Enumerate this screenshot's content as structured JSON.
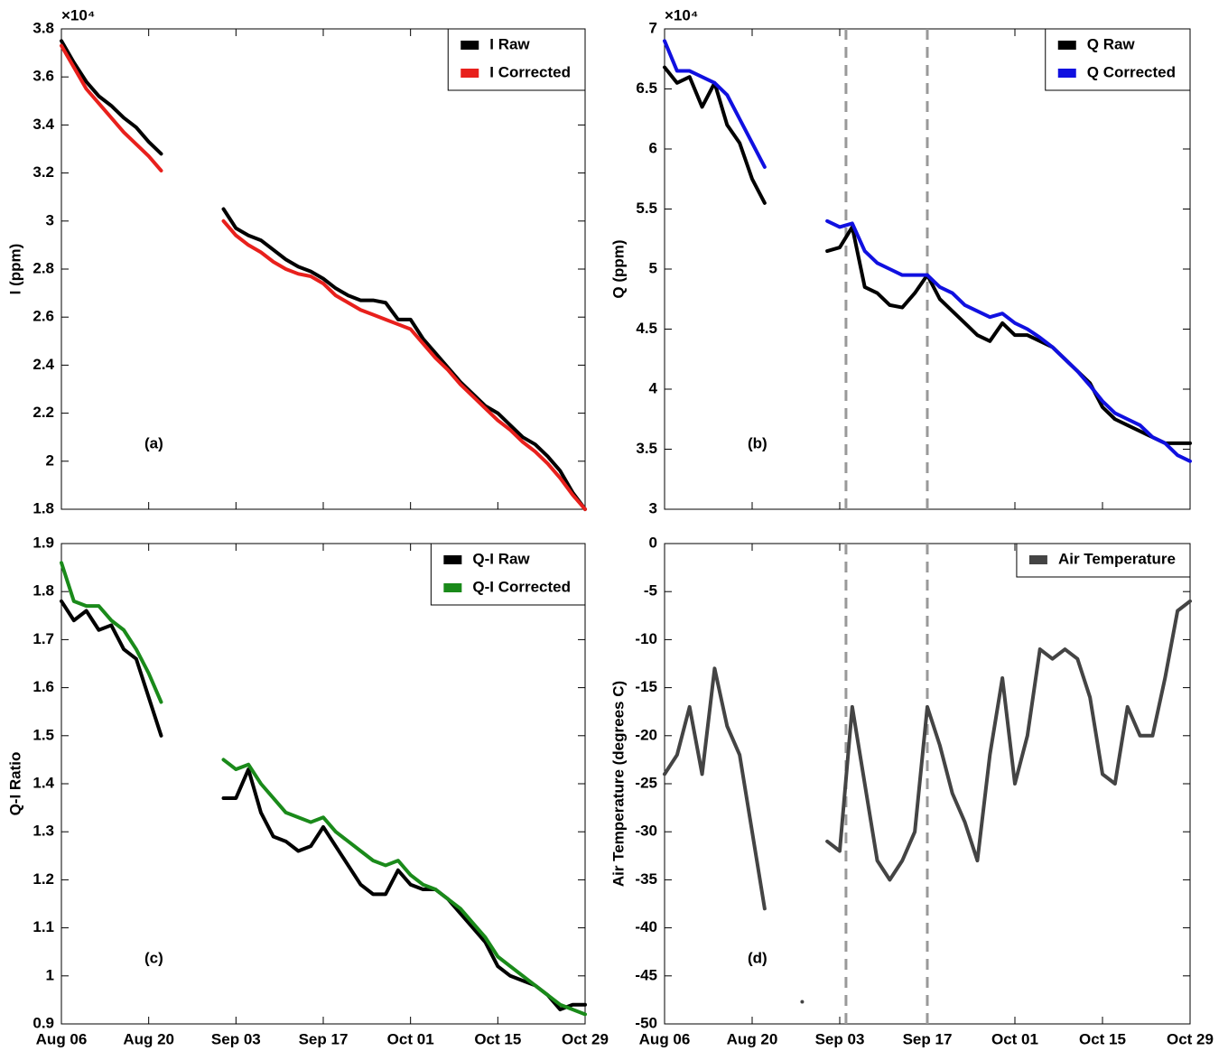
{
  "chart_data": [
    {
      "type": "line",
      "panel_label": "(a)",
      "ylabel": "I (ppm)",
      "exponent_label": "×10⁴",
      "legend": "upper right",
      "x": [
        0,
        2,
        4,
        6,
        8,
        10,
        12,
        14,
        16,
        18,
        20,
        22,
        24,
        26,
        28,
        30,
        32,
        34,
        36,
        38,
        40,
        42,
        44,
        46,
        48,
        50,
        52,
        54,
        56,
        58,
        60,
        62,
        64,
        66,
        68,
        70,
        72,
        74,
        76,
        78,
        80,
        82,
        84
      ],
      "xlim": [
        0,
        84
      ],
      "xticks": [
        0,
        14,
        28,
        42,
        56,
        70,
        84
      ],
      "ylim": [
        18000,
        38000
      ],
      "yticks": [
        {
          "value": 18000,
          "label": "1.8"
        },
        {
          "value": 20000,
          "label": "2"
        },
        {
          "value": 22000,
          "label": "2.2"
        },
        {
          "value": 24000,
          "label": "2.4"
        },
        {
          "value": 26000,
          "label": "2.6"
        },
        {
          "value": 28000,
          "label": "2.8"
        },
        {
          "value": 30000,
          "label": "3"
        },
        {
          "value": 32000,
          "label": "3.2"
        },
        {
          "value": 34000,
          "label": "3.4"
        },
        {
          "value": 36000,
          "label": "3.6"
        },
        {
          "value": 38000,
          "label": "3.8"
        }
      ],
      "series": [
        {
          "name": "I Raw",
          "color": "#000000",
          "values": [
            37500,
            36600,
            35800,
            35200,
            34800,
            34300,
            33900,
            33300,
            32800,
            null,
            null,
            null,
            null,
            30500,
            29700,
            29400,
            29200,
            28800,
            28400,
            28100,
            27900,
            27600,
            27200,
            26900,
            26700,
            26700,
            26600,
            25900,
            25900,
            25100,
            24500,
            23900,
            23300,
            22800,
            22300,
            22000,
            21500,
            21000,
            20700,
            20200,
            19600,
            18700,
            18000
          ]
        },
        {
          "name": "I Corrected",
          "color": "#e8201c",
          "values": [
            37300,
            36400,
            35500,
            34900,
            34300,
            33700,
            33200,
            32700,
            32100,
            null,
            null,
            null,
            null,
            30000,
            29400,
            29000,
            28700,
            28300,
            28000,
            27800,
            27700,
            27400,
            26900,
            26600,
            26300,
            26100,
            25900,
            25700,
            25500,
            24900,
            24300,
            23800,
            23200,
            22700,
            22200,
            21700,
            21300,
            20800,
            20400,
            19900,
            19300,
            18600,
            18000
          ]
        }
      ]
    },
    {
      "type": "line",
      "panel_label": "(b)",
      "ylabel": "Q (ppm)",
      "exponent_label": "×10⁴",
      "legend": "upper right",
      "x": [
        0,
        2,
        4,
        6,
        8,
        10,
        12,
        14,
        16,
        18,
        20,
        22,
        24,
        26,
        28,
        30,
        32,
        34,
        36,
        38,
        40,
        42,
        44,
        46,
        48,
        50,
        52,
        54,
        56,
        58,
        60,
        62,
        64,
        66,
        68,
        70,
        72,
        74,
        76,
        78,
        80,
        82,
        84
      ],
      "xlim": [
        0,
        84
      ],
      "xticks": [
        0,
        14,
        28,
        42,
        56,
        70,
        84
      ],
      "ylim": [
        30000,
        70000
      ],
      "yticks": [
        {
          "value": 30000,
          "label": "3"
        },
        {
          "value": 35000,
          "label": "3.5"
        },
        {
          "value": 40000,
          "label": "4"
        },
        {
          "value": 45000,
          "label": "4.5"
        },
        {
          "value": 50000,
          "label": "5"
        },
        {
          "value": 55000,
          "label": "5.5"
        },
        {
          "value": 60000,
          "label": "6"
        },
        {
          "value": 65000,
          "label": "6.5"
        },
        {
          "value": 70000,
          "label": "7"
        }
      ],
      "vlines": [
        29,
        42
      ],
      "series": [
        {
          "name": "Q Raw",
          "color": "#000000",
          "values": [
            66800,
            65500,
            66000,
            63500,
            65500,
            62000,
            60500,
            57500,
            55500,
            null,
            null,
            null,
            null,
            51500,
            51800,
            53500,
            48500,
            48000,
            47000,
            46800,
            48000,
            49500,
            47500,
            46500,
            45500,
            44500,
            44000,
            45500,
            44500,
            44500,
            44000,
            43500,
            42500,
            41500,
            40500,
            38500,
            37500,
            37000,
            36500,
            36000,
            35500,
            35500,
            35500
          ]
        },
        {
          "name": "Q Corrected",
          "color": "#1010e0",
          "values": [
            69000,
            66500,
            66500,
            66000,
            65500,
            64500,
            62500,
            60500,
            58500,
            null,
            null,
            null,
            null,
            54000,
            53500,
            53800,
            51500,
            50500,
            50000,
            49500,
            49500,
            49500,
            48500,
            48000,
            47000,
            46500,
            46000,
            46300,
            45500,
            45000,
            44300,
            43500,
            42500,
            41500,
            40300,
            39000,
            38000,
            37500,
            37000,
            36000,
            35500,
            34500,
            34000
          ]
        }
      ]
    },
    {
      "type": "line",
      "panel_label": "(c)",
      "ylabel": "Q-I Ratio",
      "legend": "upper right",
      "x": [
        0,
        2,
        4,
        6,
        8,
        10,
        12,
        14,
        16,
        18,
        20,
        22,
        24,
        26,
        28,
        30,
        32,
        34,
        36,
        38,
        40,
        42,
        44,
        46,
        48,
        50,
        52,
        54,
        56,
        58,
        60,
        62,
        64,
        66,
        68,
        70,
        72,
        74,
        76,
        78,
        80,
        82,
        84
      ],
      "xlim": [
        0,
        84
      ],
      "xticks": [
        {
          "value": 0,
          "label": "Aug 06"
        },
        {
          "value": 14,
          "label": "Aug 20"
        },
        {
          "value": 28,
          "label": "Sep 03"
        },
        {
          "value": 42,
          "label": "Sep 17"
        },
        {
          "value": 56,
          "label": "Oct 01"
        },
        {
          "value": 70,
          "label": "Oct 15"
        },
        {
          "value": 84,
          "label": "Oct 29"
        }
      ],
      "ylim": [
        0.9,
        1.9
      ],
      "yticks": [
        0.9,
        1,
        1.1,
        1.2,
        1.3,
        1.4,
        1.5,
        1.6,
        1.7,
        1.8,
        1.9
      ],
      "series": [
        {
          "name": "Q-I Raw",
          "color": "#000000",
          "values": [
            1.78,
            1.74,
            1.76,
            1.72,
            1.73,
            1.68,
            1.66,
            1.58,
            1.5,
            null,
            null,
            null,
            null,
            1.37,
            1.37,
            1.43,
            1.34,
            1.29,
            1.28,
            1.26,
            1.27,
            1.31,
            1.27,
            1.23,
            1.19,
            1.17,
            1.17,
            1.22,
            1.19,
            1.18,
            1.18,
            1.16,
            1.13,
            1.1,
            1.07,
            1.02,
            1.0,
            0.99,
            0.98,
            0.96,
            0.93,
            0.94,
            0.94
          ]
        },
        {
          "name": "Q-I Corrected",
          "color": "#1a8a1a",
          "values": [
            1.86,
            1.78,
            1.77,
            1.77,
            1.74,
            1.72,
            1.68,
            1.63,
            1.57,
            null,
            null,
            null,
            null,
            1.45,
            1.43,
            1.44,
            1.4,
            1.37,
            1.34,
            1.33,
            1.32,
            1.33,
            1.3,
            1.28,
            1.26,
            1.24,
            1.23,
            1.24,
            1.21,
            1.19,
            1.18,
            1.16,
            1.14,
            1.11,
            1.08,
            1.04,
            1.02,
            1.0,
            0.98,
            0.96,
            0.94,
            0.93,
            0.92
          ]
        }
      ]
    },
    {
      "type": "line",
      "panel_label": "(d)",
      "ylabel": "Air Temperature (degrees C)",
      "legend": "upper right",
      "x": [
        0,
        2,
        4,
        6,
        8,
        10,
        12,
        14,
        16,
        18,
        20,
        22,
        24,
        26,
        28,
        30,
        32,
        34,
        36,
        38,
        40,
        42,
        44,
        46,
        48,
        50,
        52,
        54,
        56,
        58,
        60,
        62,
        64,
        66,
        68,
        70,
        72,
        74,
        76,
        78,
        80,
        82,
        84
      ],
      "xlim": [
        0,
        84
      ],
      "xticks": [
        {
          "value": 0,
          "label": "Aug 06"
        },
        {
          "value": 14,
          "label": "Aug 20"
        },
        {
          "value": 28,
          "label": "Sep 03"
        },
        {
          "value": 42,
          "label": "Sep 17"
        },
        {
          "value": 56,
          "label": "Oct 01"
        },
        {
          "value": 70,
          "label": "Oct 15"
        },
        {
          "value": 84,
          "label": "Oct 29"
        }
      ],
      "ylim": [
        -50,
        0
      ],
      "yticks": [
        -50,
        -45,
        -40,
        -35,
        -30,
        -25,
        -20,
        -15,
        -10,
        -5,
        0
      ],
      "vlines": [
        29,
        42
      ],
      "series": [
        {
          "name": "Air Temperature",
          "color": "#444444",
          "values": [
            -24,
            -22,
            -17,
            -24,
            -13,
            -19,
            -22,
            -30,
            -38,
            null,
            null,
            -47.7,
            null,
            -31,
            -32,
            -17,
            -25,
            -33,
            -35,
            -33,
            -30,
            -17,
            -21,
            -26,
            -29,
            -33,
            -22,
            -14,
            -25,
            -20,
            -11,
            -12,
            -11,
            -12,
            -16,
            -24,
            -25,
            -17,
            -20,
            -20,
            -14,
            -7,
            -6
          ]
        }
      ]
    }
  ]
}
